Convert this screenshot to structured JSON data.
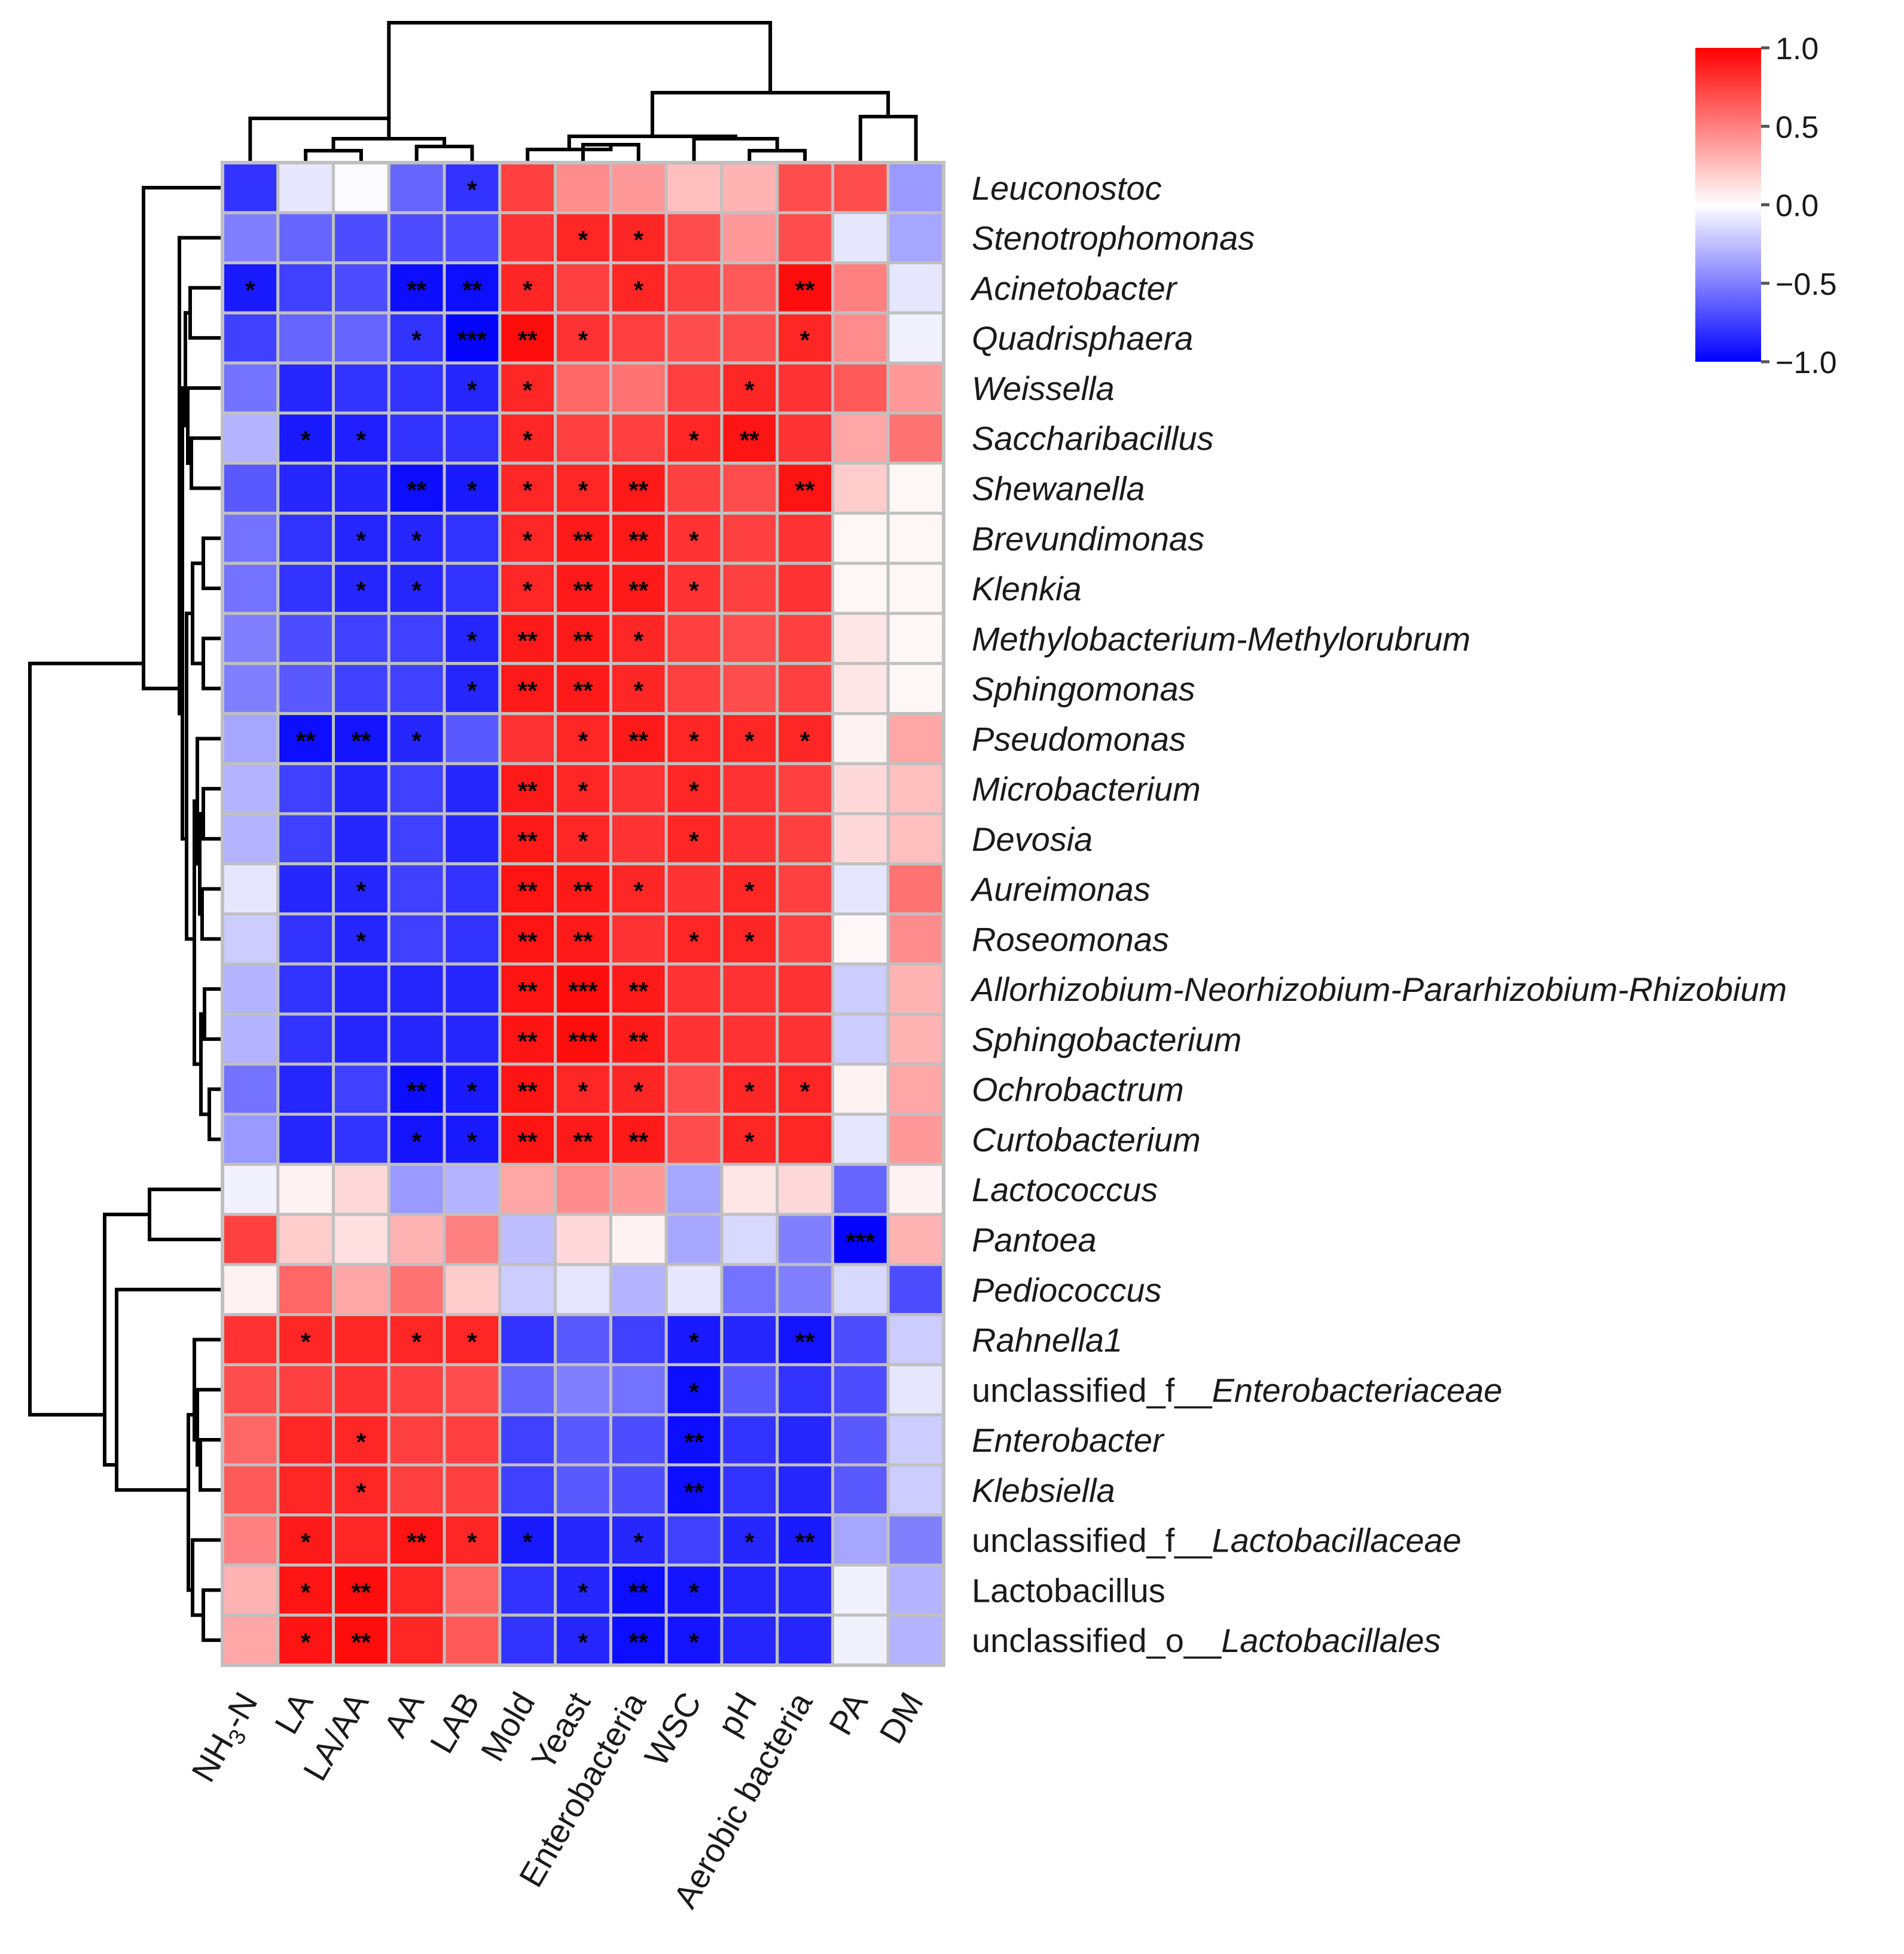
{
  "chart_data": {
    "type": "heatmap",
    "title": "",
    "columns": [
      "NH3-N",
      "LA",
      "LA/AA",
      "AA",
      "LAB",
      "Mold",
      "Yeast",
      "Enterobacteria",
      "WSC",
      "pH",
      "Aerobic bacteria",
      "PA",
      "DM"
    ],
    "rows": [
      {
        "name": "Leuconostoc",
        "prefix": "",
        "italic": "Leuconostoc",
        "values": [
          -0.8,
          -0.1,
          -0.02,
          -0.6,
          -0.8,
          0.75,
          0.45,
          0.4,
          0.25,
          0.3,
          0.7,
          0.7,
          -0.4
        ],
        "sig": [
          "",
          "",
          "",
          "",
          "*",
          "",
          "",
          "",
          "",
          "",
          "",
          "",
          ""
        ]
      },
      {
        "name": "Stenotrophomonas",
        "prefix": "",
        "italic": "Stenotrophomonas",
        "values": [
          -0.5,
          -0.6,
          -0.7,
          -0.7,
          -0.7,
          0.8,
          0.85,
          0.85,
          0.7,
          0.4,
          0.7,
          -0.1,
          -0.35
        ],
        "sig": [
          "",
          "",
          "",
          "",
          "",
          "",
          "*",
          "*",
          "",
          "",
          "",
          "",
          ""
        ]
      },
      {
        "name": "Acinetobacter",
        "prefix": "",
        "italic": "Acinetobacter",
        "values": [
          -0.9,
          -0.75,
          -0.7,
          -0.95,
          -0.95,
          0.85,
          0.75,
          0.85,
          0.75,
          0.65,
          0.95,
          0.5,
          -0.1
        ],
        "sig": [
          "*",
          "",
          "",
          "**",
          "**",
          "*",
          "",
          "*",
          "",
          "",
          "**",
          "",
          ""
        ]
      },
      {
        "name": "Quadrisphaera",
        "prefix": "",
        "italic": "Quadrisphaera",
        "values": [
          -0.75,
          -0.6,
          -0.6,
          -0.8,
          -0.98,
          0.95,
          0.8,
          0.75,
          0.7,
          0.7,
          0.85,
          0.45,
          -0.05
        ],
        "sig": [
          "",
          "",
          "",
          "*",
          "***",
          "**",
          "*",
          "",
          "",
          "",
          "*",
          "",
          ""
        ]
      },
      {
        "name": "Weissella",
        "prefix": "",
        "italic": "Weissella",
        "values": [
          -0.55,
          -0.85,
          -0.8,
          -0.8,
          -0.85,
          0.85,
          0.6,
          0.55,
          0.75,
          0.85,
          0.8,
          0.65,
          0.4
        ],
        "sig": [
          "",
          "",
          "",
          "",
          "*",
          "*",
          "",
          "",
          "",
          "*",
          "",
          "",
          ""
        ]
      },
      {
        "name": "Saccharibacillus",
        "prefix": "",
        "italic": "Saccharibacillus",
        "values": [
          -0.3,
          -0.9,
          -0.88,
          -0.8,
          -0.8,
          0.85,
          0.75,
          0.75,
          0.85,
          0.92,
          0.8,
          0.35,
          0.55
        ],
        "sig": [
          "",
          "*",
          "*",
          "",
          "",
          "*",
          "",
          "",
          "*",
          "**",
          "",
          "",
          ""
        ]
      },
      {
        "name": "Shewanella",
        "prefix": "",
        "italic": "Shewanella",
        "values": [
          -0.65,
          -0.85,
          -0.85,
          -0.95,
          -0.9,
          0.85,
          0.85,
          0.9,
          0.75,
          0.7,
          0.92,
          0.2,
          0.03
        ],
        "sig": [
          "",
          "",
          "",
          "**",
          "*",
          "*",
          "*",
          "**",
          "",
          "",
          "**",
          "",
          ""
        ]
      },
      {
        "name": "Brevundimonas",
        "prefix": "",
        "italic": "Brevundimonas",
        "values": [
          -0.55,
          -0.8,
          -0.85,
          -0.85,
          -0.8,
          0.85,
          0.9,
          0.9,
          0.8,
          0.75,
          0.8,
          0.03,
          0.03
        ],
        "sig": [
          "",
          "",
          "*",
          "*",
          "",
          "*",
          "**",
          "**",
          "*",
          "",
          "",
          "",
          ""
        ]
      },
      {
        "name": "Klenkia",
        "prefix": "",
        "italic": "Klenkia",
        "values": [
          -0.55,
          -0.8,
          -0.85,
          -0.85,
          -0.8,
          0.85,
          0.9,
          0.9,
          0.8,
          0.75,
          0.8,
          0.03,
          0.03
        ],
        "sig": [
          "",
          "",
          "*",
          "*",
          "",
          "*",
          "**",
          "**",
          "*",
          "",
          "",
          "",
          ""
        ]
      },
      {
        "name": "Methylobacterium-Methylorubrum",
        "prefix": "",
        "italic": "Methylobacterium-Methylorubrum",
        "values": [
          -0.5,
          -0.7,
          -0.75,
          -0.75,
          -0.85,
          0.9,
          0.9,
          0.85,
          0.75,
          0.7,
          0.75,
          0.1,
          0.03
        ],
        "sig": [
          "",
          "",
          "",
          "",
          "*",
          "**",
          "**",
          "*",
          "",
          "",
          "",
          "",
          ""
        ]
      },
      {
        "name": "Sphingomonas",
        "prefix": "",
        "italic": "Sphingomonas",
        "values": [
          -0.5,
          -0.65,
          -0.75,
          -0.75,
          -0.85,
          0.9,
          0.9,
          0.85,
          0.75,
          0.7,
          0.75,
          0.1,
          0.03
        ],
        "sig": [
          "",
          "",
          "",
          "",
          "*",
          "**",
          "**",
          "*",
          "",
          "",
          "",
          "",
          ""
        ]
      },
      {
        "name": "Pseudomonas",
        "prefix": "",
        "italic": "Pseudomonas",
        "values": [
          -0.35,
          -0.95,
          -0.92,
          -0.85,
          -0.65,
          0.8,
          0.85,
          0.9,
          0.85,
          0.85,
          0.85,
          0.05,
          0.35
        ],
        "sig": [
          "",
          "**",
          "**",
          "*",
          "",
          "",
          "*",
          "**",
          "*",
          "*",
          "*",
          "",
          ""
        ]
      },
      {
        "name": "Microbacterium",
        "prefix": "",
        "italic": "Microbacterium",
        "values": [
          -0.3,
          -0.75,
          -0.85,
          -0.75,
          -0.85,
          0.9,
          0.85,
          0.8,
          0.85,
          0.8,
          0.75,
          0.15,
          0.25
        ],
        "sig": [
          "",
          "",
          "",
          "",
          "",
          "**",
          "*",
          "",
          "*",
          "",
          "",
          "",
          ""
        ]
      },
      {
        "name": "Devosia",
        "prefix": "",
        "italic": "Devosia",
        "values": [
          -0.3,
          -0.75,
          -0.85,
          -0.75,
          -0.85,
          0.9,
          0.85,
          0.8,
          0.85,
          0.8,
          0.75,
          0.15,
          0.25
        ],
        "sig": [
          "",
          "",
          "",
          "",
          "",
          "**",
          "*",
          "",
          "*",
          "",
          "",
          "",
          ""
        ]
      },
      {
        "name": "Aureimonas",
        "prefix": "",
        "italic": "Aureimonas",
        "values": [
          -0.1,
          -0.85,
          -0.85,
          -0.75,
          -0.8,
          0.92,
          0.9,
          0.85,
          0.8,
          0.85,
          0.75,
          -0.1,
          0.55
        ],
        "sig": [
          "",
          "",
          "*",
          "",
          "",
          "**",
          "**",
          "*",
          "",
          "*",
          "",
          "",
          ""
        ]
      },
      {
        "name": "Roseomonas",
        "prefix": "",
        "italic": "Roseomonas",
        "values": [
          -0.2,
          -0.8,
          -0.85,
          -0.75,
          -0.8,
          0.92,
          0.9,
          0.8,
          0.85,
          0.85,
          0.75,
          0.03,
          0.45
        ],
        "sig": [
          "",
          "",
          "*",
          "",
          "",
          "**",
          "**",
          "",
          "*",
          "*",
          "",
          "",
          ""
        ]
      },
      {
        "name": "Allorhizobium-Neorhizobium-Pararhizobium-Rhizobium",
        "prefix": "",
        "italic": "Allorhizobium-Neorhizobium-Pararhizobium-Rhizobium",
        "values": [
          -0.3,
          -0.8,
          -0.85,
          -0.85,
          -0.85,
          0.92,
          0.95,
          0.9,
          0.8,
          0.8,
          0.8,
          -0.2,
          0.3
        ],
        "sig": [
          "",
          "",
          "",
          "",
          "",
          "**",
          "***",
          "**",
          "",
          "",
          "",
          "",
          ""
        ]
      },
      {
        "name": "Sphingobacterium",
        "prefix": "",
        "italic": "Sphingobacterium",
        "values": [
          -0.3,
          -0.8,
          -0.85,
          -0.85,
          -0.85,
          0.92,
          0.95,
          0.9,
          0.8,
          0.8,
          0.8,
          -0.2,
          0.3
        ],
        "sig": [
          "",
          "",
          "",
          "",
          "",
          "**",
          "***",
          "**",
          "",
          "",
          "",
          "",
          ""
        ]
      },
      {
        "name": "Ochrobactrum",
        "prefix": "",
        "italic": "Ochrobactrum",
        "values": [
          -0.55,
          -0.85,
          -0.75,
          -0.95,
          -0.9,
          0.92,
          0.85,
          0.85,
          0.7,
          0.85,
          0.85,
          0.05,
          0.35
        ],
        "sig": [
          "",
          "",
          "",
          "**",
          "*",
          "**",
          "*",
          "*",
          "",
          "*",
          "*",
          "",
          ""
        ]
      },
      {
        "name": "Curtobacterium",
        "prefix": "",
        "italic": "Curtobacterium",
        "values": [
          -0.4,
          -0.85,
          -0.8,
          -0.92,
          -0.9,
          0.92,
          0.9,
          0.9,
          0.7,
          0.85,
          0.85,
          -0.1,
          0.4
        ],
        "sig": [
          "",
          "",
          "",
          "*",
          "*",
          "**",
          "**",
          "**",
          "",
          "*",
          "",
          "",
          ""
        ]
      },
      {
        "name": "Lactococcus",
        "prefix": "",
        "italic": "Lactococcus",
        "values": [
          -0.05,
          0.05,
          0.15,
          -0.4,
          -0.3,
          0.35,
          0.45,
          0.4,
          -0.35,
          0.1,
          0.15,
          -0.6,
          0.05
        ],
        "sig": [
          "",
          "",
          "",
          "",
          "",
          "",
          "",
          "",
          "",
          "",
          "",
          "",
          ""
        ]
      },
      {
        "name": "Pantoea",
        "prefix": "",
        "italic": "Pantoea",
        "values": [
          0.75,
          0.2,
          0.12,
          0.3,
          0.5,
          -0.25,
          0.15,
          0.05,
          -0.35,
          -0.15,
          -0.5,
          -0.98,
          0.3
        ],
        "sig": [
          "",
          "",
          "",
          "",
          "",
          "",
          "",
          "",
          "",
          "",
          "",
          "***",
          ""
        ]
      },
      {
        "name": "Pediococcus",
        "prefix": "",
        "italic": "Pediococcus",
        "values": [
          0.05,
          0.6,
          0.35,
          0.55,
          0.2,
          -0.2,
          -0.1,
          -0.3,
          -0.1,
          -0.55,
          -0.5,
          -0.15,
          -0.7
        ],
        "sig": [
          "",
          "",
          "",
          "",
          "",
          "",
          "",
          "",
          "",
          "",
          "",
          "",
          ""
        ]
      },
      {
        "name": "Rahnella1",
        "prefix": "",
        "italic": "Rahnella1",
        "values": [
          0.8,
          0.85,
          0.85,
          0.85,
          0.85,
          -0.8,
          -0.65,
          -0.75,
          -0.9,
          -0.85,
          -0.92,
          -0.7,
          -0.2
        ],
        "sig": [
          "",
          "*",
          "",
          "*",
          "*",
          "",
          "",
          "",
          "*",
          "",
          "**",
          "",
          ""
        ]
      },
      {
        "name": "unclassified_f__Enterobacteriaceae",
        "prefix": "unclassified_f__",
        "italic": "Enterobacteriaceae",
        "values": [
          0.7,
          0.75,
          0.8,
          0.75,
          0.7,
          -0.6,
          -0.5,
          -0.55,
          -0.95,
          -0.65,
          -0.8,
          -0.7,
          -0.1
        ],
        "sig": [
          "",
          "",
          "",
          "",
          "",
          "",
          "",
          "",
          "*",
          "",
          "",
          "",
          ""
        ]
      },
      {
        "name": "Enterobacter",
        "prefix": "",
        "italic": "Enterobacter",
        "values": [
          0.6,
          0.85,
          0.85,
          0.75,
          0.75,
          -0.75,
          -0.65,
          -0.7,
          -0.95,
          -0.8,
          -0.85,
          -0.65,
          -0.2
        ],
        "sig": [
          "",
          "",
          "*",
          "",
          "",
          "",
          "",
          "",
          "**",
          "",
          "",
          "",
          ""
        ]
      },
      {
        "name": "Klebsiella",
        "prefix": "",
        "italic": "Klebsiella",
        "values": [
          0.65,
          0.85,
          0.85,
          0.75,
          0.75,
          -0.75,
          -0.65,
          -0.7,
          -0.95,
          -0.8,
          -0.85,
          -0.65,
          -0.2
        ],
        "sig": [
          "",
          "",
          "*",
          "",
          "",
          "",
          "",
          "",
          "**",
          "",
          "",
          "",
          ""
        ]
      },
      {
        "name": "unclassified_f__Lactobacillaceae",
        "prefix": "unclassified_f__",
        "italic": "Lactobacillaceae",
        "values": [
          0.5,
          0.9,
          0.85,
          0.92,
          0.85,
          -0.9,
          -0.85,
          -0.85,
          -0.75,
          -0.85,
          -0.9,
          -0.35,
          -0.5
        ],
        "sig": [
          "",
          "*",
          "",
          "**",
          "*",
          "*",
          "",
          "*",
          "",
          "*",
          "**",
          "",
          ""
        ]
      },
      {
        "name": "Lactobacillus",
        "prefix": "",
        "italic": "",
        "values": [
          0.3,
          0.92,
          0.95,
          0.85,
          0.6,
          -0.8,
          -0.85,
          -0.95,
          -0.92,
          -0.85,
          -0.85,
          -0.05,
          -0.3
        ],
        "sig": [
          "",
          "*",
          "**",
          "",
          "",
          "",
          "*",
          "**",
          "*",
          "",
          "",
          "",
          ""
        ]
      },
      {
        "name": "unclassified_o__Lactobacillales",
        "prefix": "unclassified_o__",
        "italic": "Lactobacillales",
        "values": [
          0.35,
          0.92,
          0.95,
          0.85,
          0.65,
          -0.8,
          -0.85,
          -0.95,
          -0.92,
          -0.85,
          -0.85,
          -0.05,
          -0.3
        ],
        "sig": [
          "",
          "*",
          "**",
          "",
          "",
          "",
          "*",
          "**",
          "*",
          "",
          "",
          "",
          ""
        ]
      }
    ],
    "color_scale": {
      "min": -1.0,
      "mid": 0.0,
      "max": 1.0,
      "low_color": "#0000ff",
      "mid_color": "#ffffff",
      "high_color": "#ff0000",
      "ticks": [
        "1.0",
        "0.5",
        "0.0",
        "−0.5",
        "−1.0"
      ],
      "tick_values": [
        1.0,
        0.5,
        0.0,
        -0.5,
        -1.0
      ]
    },
    "legend_position": "top-right",
    "grid_color": "#c0c0c0"
  }
}
